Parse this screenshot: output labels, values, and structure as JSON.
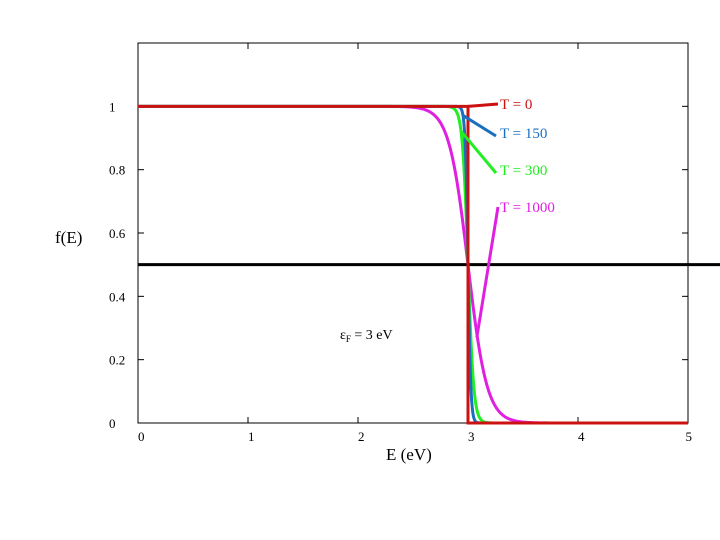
{
  "chart_data": {
    "type": "line",
    "xlabel": "E (eV)",
    "ylabel": "f(E)",
    "xlim": [
      0,
      5
    ],
    "ylim": [
      0,
      1.2
    ],
    "xticks": [
      "0",
      "1",
      "2",
      "3",
      "4",
      "5"
    ],
    "yticks": [
      "0",
      "0.2",
      "0.4",
      "0.6",
      "0.8",
      "1"
    ],
    "fermi_energy_eV": 3,
    "reference_line_y": 0.5,
    "annotation": {
      "symbol": "ε",
      "subscript": "F",
      "text": " = 3  eV"
    },
    "grid": false,
    "legend": "callout labels at right",
    "series": [
      {
        "name": "T = 0",
        "temperature_K": 0,
        "color": "#cc1111",
        "function": "step at E = 3 eV: 1 below, 0 above"
      },
      {
        "name": "T = 150",
        "temperature_K": 150,
        "color": "#1a6fbf",
        "function": "1 / (1 + exp((E - 3) / kT))"
      },
      {
        "name": "T = 300",
        "temperature_K": 300,
        "color": "#22ee22",
        "function": "1 / (1 + exp((E - 3) / kT))"
      },
      {
        "name": "T = 1000",
        "temperature_K": 1000,
        "color": "#e020e0",
        "function": "1 / (1 + exp((E - 3) / kT))"
      }
    ]
  }
}
